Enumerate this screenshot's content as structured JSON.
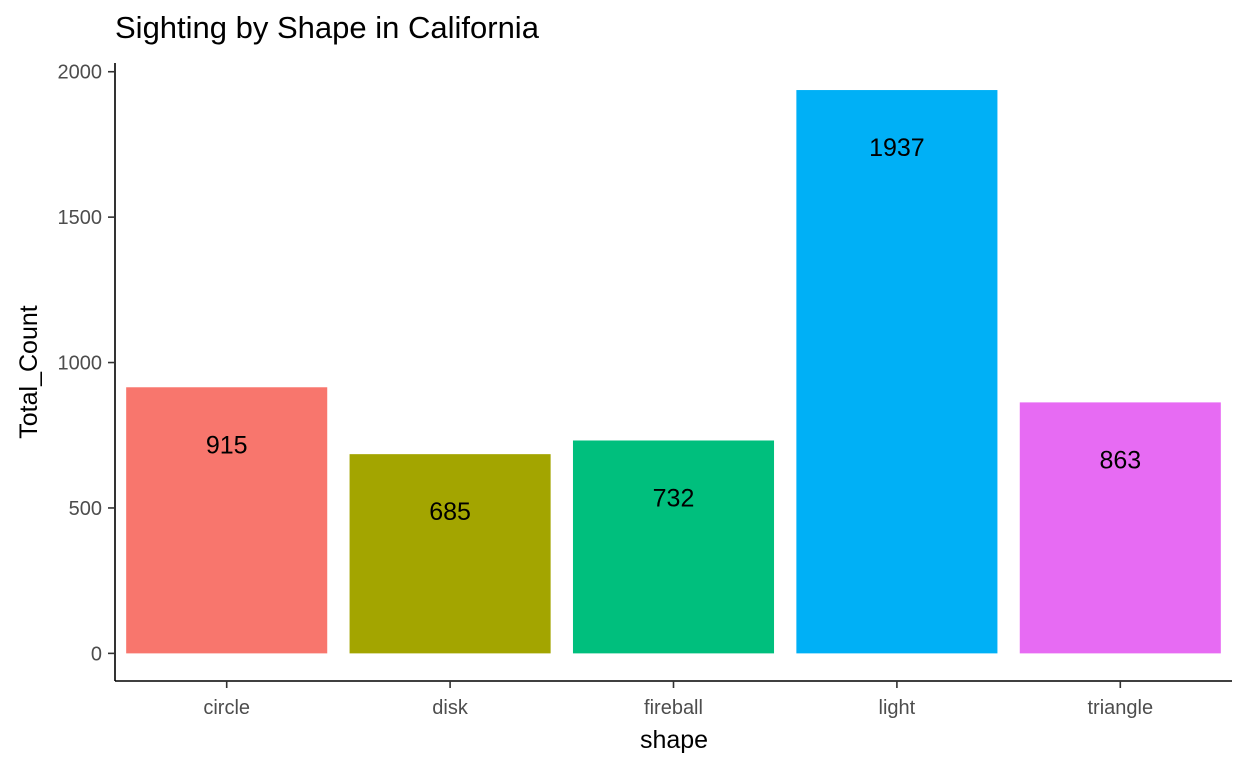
{
  "chart_data": {
    "type": "bar",
    "title": "Sighting by Shape in California",
    "xlabel": "shape",
    "ylabel": "Total_Count",
    "categories": [
      "circle",
      "disk",
      "fireball",
      "light",
      "triangle"
    ],
    "values": [
      915,
      685,
      732,
      1937,
      863
    ],
    "data_labels": [
      "915",
      "685",
      "732",
      "1937",
      "863"
    ],
    "colors": [
      "#F8766D",
      "#A3A500",
      "#00BF7D",
      "#00B0F6",
      "#E76BF3"
    ],
    "ylim": [
      -95,
      2030
    ],
    "yticks": [
      0,
      500,
      1000,
      1500,
      2000
    ],
    "ytick_labels": [
      "0",
      "500",
      "1000",
      "1500",
      "2000"
    ],
    "grid": false,
    "legend": "none"
  }
}
